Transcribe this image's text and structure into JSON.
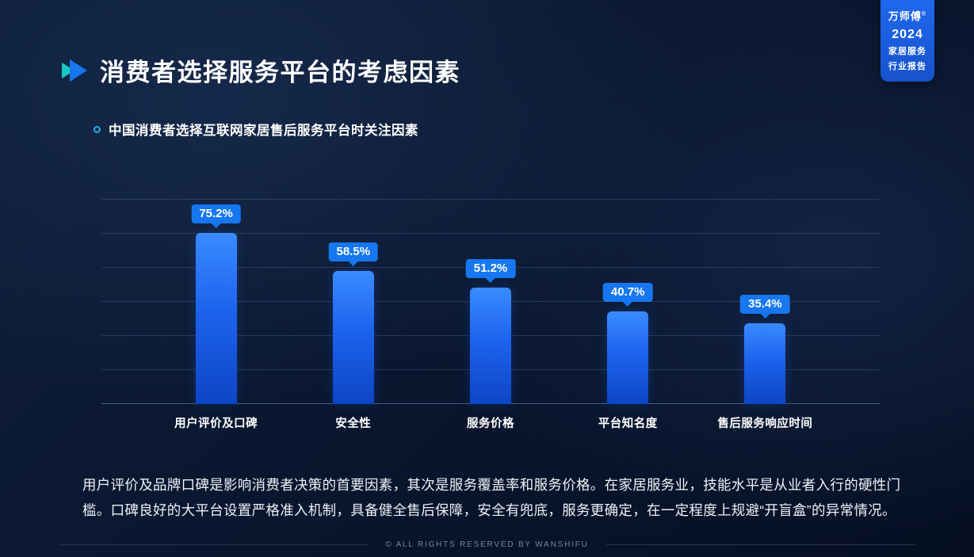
{
  "page": {
    "title": "消费者选择服务平台的考虑因素",
    "subtitle": "中国消费者选择互联网家居售后服务平台时关注因素",
    "body_text": "用户评价及品牌口碑是影响消费者决策的首要因素，其次是服务覆盖率和服务价格。在家居服务业，技能水平是从业者入行的硬性门槛。口碑良好的大平台设置严格准入机制，具备健全售后保障，安全有兜底，服务更确定，在一定程度上规避“开盲盒”的异常情况。",
    "footer": "© ALL RIGHTS RESERVED BY WANSHIFU"
  },
  "badge": {
    "brand": "万师傅",
    "reg_mark": "®",
    "year": "2024",
    "line1": "家居服务",
    "line2": "行业报告"
  },
  "chart_data": {
    "type": "bar",
    "title": "中国消费者选择互联网家居售后服务平台时关注因素",
    "categories": [
      "用户评价及口碑",
      "安全性",
      "服务价格",
      "平台知名度",
      "售后服务响应时间"
    ],
    "values": [
      75.2,
      58.5,
      51.2,
      40.7,
      35.4
    ],
    "value_labels": [
      "75.2%",
      "58.5%",
      "51.2%",
      "40.7%",
      "35.4%"
    ],
    "xlabel": "",
    "ylabel": "",
    "ylim": [
      0,
      90
    ],
    "grid": true,
    "legend": "none"
  },
  "colors": {
    "accent_blue": "#1677f0",
    "bar_top": "#3a8bff",
    "bar_bottom": "#0d46c4",
    "teal": "#17c8c4",
    "background_dark": "#0a1730",
    "footer_text": "#7d8698"
  }
}
